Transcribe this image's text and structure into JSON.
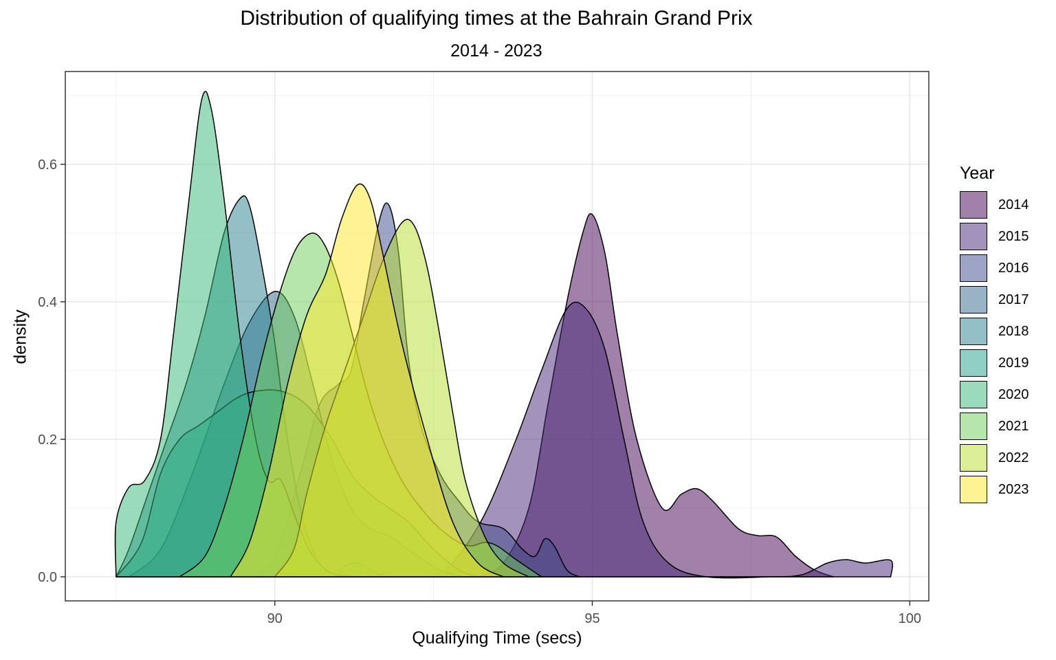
{
  "chart_data": {
    "type": "area",
    "title": "Distribution of qualifying times at the Bahrain Grand Prix",
    "subtitle": "2014 - 2023",
    "xlabel": "Qualifying Time (secs)",
    "ylabel": "density",
    "xlim": [
      86.7,
      100.3
    ],
    "ylim": [
      -0.035,
      0.735
    ],
    "x_ticks": [
      90,
      95,
      100
    ],
    "y_ticks": [
      0.0,
      0.2,
      0.4,
      0.6
    ],
    "y_tick_labels": [
      "0.0",
      "0.2",
      "0.4",
      "0.6"
    ],
    "grid": true,
    "legend_title": "Year",
    "legend_position": "right",
    "fill_opacity": 0.5,
    "series": [
      {
        "name": "2014",
        "color": "#440154",
        "points": [
          [
            93.2,
            0
          ],
          [
            93.6,
            0.02
          ],
          [
            94.0,
            0.1
          ],
          [
            94.3,
            0.25
          ],
          [
            94.6,
            0.4
          ],
          [
            94.85,
            0.5
          ],
          [
            95.0,
            0.527
          ],
          [
            95.2,
            0.47
          ],
          [
            95.4,
            0.35
          ],
          [
            95.7,
            0.2
          ],
          [
            96.1,
            0.1
          ],
          [
            96.4,
            0.12
          ],
          [
            96.65,
            0.128
          ],
          [
            96.9,
            0.11
          ],
          [
            97.3,
            0.07
          ],
          [
            97.6,
            0.06
          ],
          [
            97.9,
            0.058
          ],
          [
            98.2,
            0.03
          ],
          [
            98.5,
            0.01
          ],
          [
            98.8,
            0
          ]
        ]
      },
      {
        "name": "2015",
        "color": "#482878",
        "points": [
          [
            92.5,
            0
          ],
          [
            92.8,
            0.02
          ],
          [
            93.3,
            0.09
          ],
          [
            93.8,
            0.2
          ],
          [
            94.2,
            0.3
          ],
          [
            94.6,
            0.39
          ],
          [
            94.9,
            0.39
          ],
          [
            95.2,
            0.33
          ],
          [
            95.5,
            0.2
          ],
          [
            95.8,
            0.08
          ],
          [
            96.2,
            0.02
          ],
          [
            96.8,
            0
          ],
          [
            97.8,
            0
          ],
          [
            98.3,
            0.003
          ],
          [
            98.7,
            0.02
          ],
          [
            99.0,
            0.025
          ],
          [
            99.3,
            0.02
          ],
          [
            99.7,
            0.024
          ],
          [
            99.7,
            0
          ]
        ]
      },
      {
        "name": "2016",
        "color": "#3E4A89",
        "points": [
          [
            89.6,
            0
          ],
          [
            90.0,
            0.03
          ],
          [
            90.4,
            0.15
          ],
          [
            90.7,
            0.25
          ],
          [
            91.0,
            0.28
          ],
          [
            91.2,
            0.3
          ],
          [
            91.4,
            0.4
          ],
          [
            91.65,
            0.52
          ],
          [
            91.8,
            0.54
          ],
          [
            91.95,
            0.47
          ],
          [
            92.1,
            0.32
          ],
          [
            92.3,
            0.22
          ],
          [
            92.6,
            0.15
          ],
          [
            92.9,
            0.11
          ],
          [
            93.2,
            0.08
          ],
          [
            93.6,
            0.07
          ],
          [
            93.9,
            0.04
          ],
          [
            94.1,
            0.03
          ],
          [
            94.25,
            0.055
          ],
          [
            94.4,
            0.045
          ],
          [
            94.6,
            0.01
          ],
          [
            94.8,
            0
          ]
        ]
      },
      {
        "name": "2017",
        "color": "#31688E",
        "points": [
          [
            87.7,
            0
          ],
          [
            88.2,
            0.04
          ],
          [
            88.7,
            0.15
          ],
          [
            89.2,
            0.28
          ],
          [
            89.6,
            0.37
          ],
          [
            90.0,
            0.415
          ],
          [
            90.3,
            0.38
          ],
          [
            90.6,
            0.28
          ],
          [
            90.9,
            0.17
          ],
          [
            91.2,
            0.1
          ],
          [
            91.5,
            0.07
          ],
          [
            91.8,
            0.06
          ],
          [
            92.1,
            0.04
          ],
          [
            92.6,
            0.01
          ],
          [
            93.0,
            0
          ]
        ]
      },
      {
        "name": "2018",
        "color": "#26828E",
        "points": [
          [
            87.5,
            0
          ],
          [
            87.7,
            0.04
          ],
          [
            88.0,
            0.12
          ],
          [
            88.3,
            0.2
          ],
          [
            88.6,
            0.28
          ],
          [
            88.9,
            0.38
          ],
          [
            89.2,
            0.5
          ],
          [
            89.45,
            0.55
          ],
          [
            89.6,
            0.54
          ],
          [
            89.8,
            0.45
          ],
          [
            90.0,
            0.34
          ],
          [
            90.2,
            0.2
          ],
          [
            90.45,
            0.08
          ],
          [
            90.7,
            0.02
          ],
          [
            90.95,
            0.003
          ],
          [
            91.1,
            0.015
          ],
          [
            91.3,
            0.02
          ],
          [
            91.6,
            0.005
          ],
          [
            91.8,
            0
          ]
        ]
      },
      {
        "name": "2019",
        "color": "#1F9E89",
        "points": [
          [
            87.5,
            0
          ],
          [
            87.9,
            0.05
          ],
          [
            88.2,
            0.15
          ],
          [
            88.5,
            0.2
          ],
          [
            88.8,
            0.22
          ],
          [
            89.1,
            0.24
          ],
          [
            89.4,
            0.26
          ],
          [
            89.7,
            0.27
          ],
          [
            90.1,
            0.27
          ],
          [
            90.5,
            0.25
          ],
          [
            90.9,
            0.2
          ],
          [
            91.2,
            0.15
          ],
          [
            91.5,
            0.12
          ],
          [
            91.8,
            0.1
          ],
          [
            92.1,
            0.08
          ],
          [
            92.5,
            0.04
          ],
          [
            92.9,
            0.01
          ],
          [
            93.2,
            0
          ]
        ]
      },
      {
        "name": "2020",
        "color": "#35B779",
        "points": [
          [
            87.5,
            0
          ],
          [
            87.5,
            0.08
          ],
          [
            87.7,
            0.13
          ],
          [
            87.95,
            0.14
          ],
          [
            88.2,
            0.2
          ],
          [
            88.4,
            0.35
          ],
          [
            88.65,
            0.55
          ],
          [
            88.85,
            0.695
          ],
          [
            89.0,
            0.68
          ],
          [
            89.2,
            0.55
          ],
          [
            89.45,
            0.35
          ],
          [
            89.7,
            0.2
          ],
          [
            89.9,
            0.14
          ],
          [
            90.1,
            0.14
          ],
          [
            90.35,
            0.08
          ],
          [
            90.6,
            0.03
          ],
          [
            90.9,
            0.005
          ],
          [
            91.3,
            0
          ]
        ]
      },
      {
        "name": "2021",
        "color": "#6DCD59",
        "points": [
          [
            88.5,
            0
          ],
          [
            88.9,
            0.03
          ],
          [
            89.2,
            0.1
          ],
          [
            89.5,
            0.2
          ],
          [
            89.8,
            0.32
          ],
          [
            90.1,
            0.42
          ],
          [
            90.35,
            0.48
          ],
          [
            90.6,
            0.5
          ],
          [
            90.8,
            0.48
          ],
          [
            91.0,
            0.43
          ],
          [
            91.2,
            0.36
          ],
          [
            91.45,
            0.27
          ],
          [
            91.7,
            0.2
          ],
          [
            92.0,
            0.14
          ],
          [
            92.3,
            0.1
          ],
          [
            92.6,
            0.07
          ],
          [
            92.9,
            0.05
          ],
          [
            93.1,
            0.045
          ],
          [
            93.3,
            0.05
          ],
          [
            93.5,
            0.045
          ],
          [
            93.8,
            0.025
          ],
          [
            94.2,
            0
          ]
        ]
      },
      {
        "name": "2022",
        "color": "#B4DE2C",
        "points": [
          [
            90.0,
            0
          ],
          [
            90.3,
            0.04
          ],
          [
            90.5,
            0.12
          ],
          [
            90.8,
            0.22
          ],
          [
            91.1,
            0.3
          ],
          [
            91.4,
            0.38
          ],
          [
            91.7,
            0.46
          ],
          [
            92.0,
            0.515
          ],
          [
            92.2,
            0.51
          ],
          [
            92.4,
            0.45
          ],
          [
            92.6,
            0.35
          ],
          [
            92.8,
            0.24
          ],
          [
            93.0,
            0.14
          ],
          [
            93.3,
            0.06
          ],
          [
            93.6,
            0.02
          ],
          [
            94.0,
            0
          ]
        ]
      },
      {
        "name": "2023",
        "color": "#FDE725",
        "points": [
          [
            89.3,
            0
          ],
          [
            89.6,
            0.05
          ],
          [
            89.9,
            0.15
          ],
          [
            90.2,
            0.28
          ],
          [
            90.5,
            0.38
          ],
          [
            90.8,
            0.44
          ],
          [
            91.05,
            0.52
          ],
          [
            91.3,
            0.57
          ],
          [
            91.5,
            0.55
          ],
          [
            91.7,
            0.47
          ],
          [
            92.0,
            0.34
          ],
          [
            92.4,
            0.2
          ],
          [
            92.8,
            0.08
          ],
          [
            93.2,
            0.02
          ],
          [
            93.6,
            0
          ]
        ]
      }
    ]
  }
}
